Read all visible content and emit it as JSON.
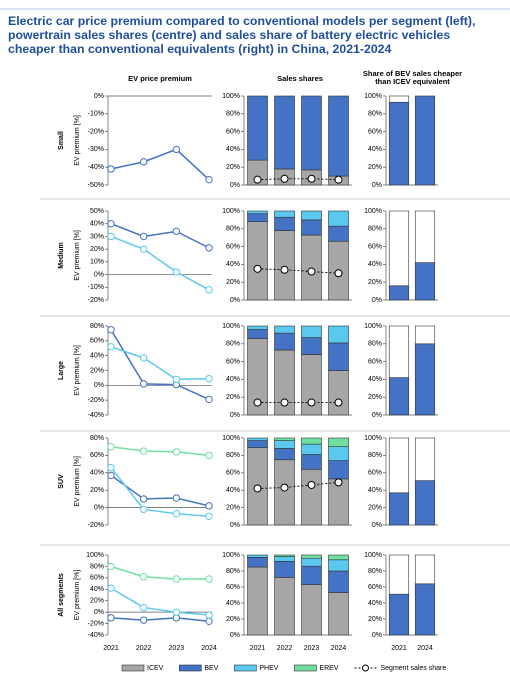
{
  "title": "Electric car price premium compared to conventional models per segment (left), powertrain sales shares (centre) and sales share of battery electric vehicles cheaper than conventional equivalents (right) in China, 2021-2024",
  "column_titles": [
    "EV price premium",
    "Sales shares",
    "Share of BEV sales cheaper than ICEV equivalent"
  ],
  "legend": [
    {
      "name": "ICEV",
      "color": "#a6a6a6",
      "mark": "box"
    },
    {
      "name": "BEV",
      "color": "#4472c4",
      "mark": "box"
    },
    {
      "name": "PHEV",
      "color": "#5bc8ef",
      "mark": "box"
    },
    {
      "name": "EREV",
      "color": "#70e0a0",
      "mark": "box"
    },
    {
      "name": "Segment sales share",
      "color": "#000000",
      "mark": "line"
    }
  ],
  "chart_data": [
    {
      "type": "line",
      "row_label": "Small",
      "y_label": "EV premium [%]",
      "categories": [
        null,
        null,
        null,
        null
      ],
      "ylim": [
        -50,
        0
      ],
      "yticks": [
        {
          "value": 0,
          "label": "0%"
        },
        {
          "value": -10,
          "label": "-10%"
        },
        {
          "value": -20,
          "label": "-20%"
        },
        {
          "value": -30,
          "label": "-30%"
        },
        {
          "value": -40,
          "label": "-40%"
        },
        {
          "value": -50,
          "label": "-50%"
        }
      ],
      "series": [
        {
          "color": "#4472c4",
          "values": [
            -41,
            -37,
            -30,
            -47
          ]
        }
      ]
    },
    {
      "type": "bar",
      "stacked": true,
      "categories": [
        null,
        null,
        null,
        null
      ],
      "ylim": [
        0,
        100
      ],
      "yticks": [
        {
          "value": 0,
          "label": "0%"
        },
        {
          "value": 20,
          "label": "20%"
        },
        {
          "value": 40,
          "label": "40%"
        },
        {
          "value": 60,
          "label": "60%"
        },
        {
          "value": 80,
          "label": "80%"
        },
        {
          "value": 100,
          "label": "100%"
        }
      ],
      "series": [
        {
          "color": "#a6a6a6",
          "values": [
            28,
            18,
            17,
            10
          ]
        },
        {
          "color": "#4472c4",
          "values": [
            72,
            82,
            83,
            90
          ]
        },
        {
          "type": "line",
          "color": "#000000",
          "values": [
            6,
            7,
            7,
            6
          ]
        }
      ]
    },
    {
      "type": "bar",
      "stacked": true,
      "categories": [
        null,
        null
      ],
      "ylim": [
        0,
        100
      ],
      "yticks": [
        {
          "value": 0,
          "label": "0%"
        },
        {
          "value": 20,
          "label": "20%"
        },
        {
          "value": 40,
          "label": "40%"
        },
        {
          "value": 60,
          "label": "60%"
        },
        {
          "value": 80,
          "label": "80%"
        },
        {
          "value": 100,
          "label": "100%"
        }
      ],
      "series": [
        {
          "color": "#4472c4",
          "values": [
            93,
            100
          ]
        },
        {
          "color": "#ffffff",
          "values": [
            7,
            0
          ]
        }
      ]
    },
    {
      "type": "line",
      "row_label": "Medium",
      "y_label": "EV premium [%]",
      "categories": [
        null,
        null,
        null,
        null
      ],
      "ylim": [
        -20,
        50
      ],
      "yticks": [
        {
          "value": 50,
          "label": "50%"
        },
        {
          "value": 40,
          "label": "40%"
        },
        {
          "value": 30,
          "label": "30%"
        },
        {
          "value": 20,
          "label": "20%"
        },
        {
          "value": 10,
          "label": "10%"
        },
        {
          "value": 0,
          "label": "0%"
        },
        {
          "value": -10,
          "label": "-10%"
        },
        {
          "value": -20,
          "label": "-20%"
        }
      ],
      "series": [
        {
          "color": "#4472c4",
          "values": [
            40,
            30,
            34,
            21
          ]
        },
        {
          "color": "#5bc8ef",
          "values": [
            30,
            20,
            2,
            -12
          ]
        }
      ]
    },
    {
      "type": "bar",
      "stacked": true,
      "categories": [
        null,
        null,
        null,
        null
      ],
      "ylim": [
        0,
        100
      ],
      "yticks": [
        {
          "value": 0,
          "label": "0%"
        },
        {
          "value": 20,
          "label": "20%"
        },
        {
          "value": 40,
          "label": "40%"
        },
        {
          "value": 60,
          "label": "60%"
        },
        {
          "value": 80,
          "label": "80%"
        },
        {
          "value": 100,
          "label": "100%"
        }
      ],
      "series": [
        {
          "color": "#a6a6a6",
          "values": [
            88,
            78,
            73,
            66
          ]
        },
        {
          "color": "#4472c4",
          "values": [
            9,
            15,
            17,
            17
          ]
        },
        {
          "color": "#5bc8ef",
          "values": [
            3,
            7,
            10,
            17
          ]
        },
        {
          "type": "line",
          "color": "#000000",
          "values": [
            35,
            34,
            32,
            30
          ]
        }
      ]
    },
    {
      "type": "bar",
      "stacked": true,
      "categories": [
        null,
        null
      ],
      "ylim": [
        0,
        100
      ],
      "yticks": [
        {
          "value": 0,
          "label": "0%"
        },
        {
          "value": 20,
          "label": "20%"
        },
        {
          "value": 40,
          "label": "40%"
        },
        {
          "value": 60,
          "label": "60%"
        },
        {
          "value": 80,
          "label": "80%"
        },
        {
          "value": 100,
          "label": "100%"
        }
      ],
      "series": [
        {
          "color": "#4472c4",
          "values": [
            16,
            42
          ]
        },
        {
          "color": "#ffffff",
          "values": [
            84,
            58
          ]
        }
      ]
    },
    {
      "type": "line",
      "row_label": "Large",
      "y_label": "EV premium [%]",
      "categories": [
        null,
        null,
        null,
        null
      ],
      "ylim": [
        -40,
        80
      ],
      "yticks": [
        {
          "value": 80,
          "label": "80%"
        },
        {
          "value": 60,
          "label": "60%"
        },
        {
          "value": 40,
          "label": "40%"
        },
        {
          "value": 20,
          "label": "20%"
        },
        {
          "value": 0,
          "label": "0%"
        },
        {
          "value": -20,
          "label": "-20%"
        },
        {
          "value": -40,
          "label": "-40%"
        }
      ],
      "series": [
        {
          "color": "#4472c4",
          "values": [
            75,
            2,
            1,
            -19
          ]
        },
        {
          "color": "#5bc8ef",
          "values": [
            52,
            37,
            8,
            9
          ]
        }
      ]
    },
    {
      "type": "bar",
      "stacked": true,
      "categories": [
        null,
        null,
        null,
        null
      ],
      "ylim": [
        0,
        100
      ],
      "yticks": [
        {
          "value": 0,
          "label": "0%"
        },
        {
          "value": 20,
          "label": "20%"
        },
        {
          "value": 40,
          "label": "40%"
        },
        {
          "value": 60,
          "label": "60%"
        },
        {
          "value": 80,
          "label": "80%"
        },
        {
          "value": 100,
          "label": "100%"
        }
      ],
      "series": [
        {
          "color": "#a6a6a6",
          "values": [
            86,
            73,
            68,
            50
          ]
        },
        {
          "color": "#4472c4",
          "values": [
            10,
            19,
            19,
            31
          ]
        },
        {
          "color": "#5bc8ef",
          "values": [
            4,
            8,
            13,
            19
          ]
        },
        {
          "type": "line",
          "color": "#000000",
          "values": [
            14,
            14,
            14,
            14
          ]
        }
      ]
    },
    {
      "type": "bar",
      "stacked": true,
      "categories": [
        null,
        null
      ],
      "ylim": [
        0,
        100
      ],
      "yticks": [
        {
          "value": 0,
          "label": "0%"
        },
        {
          "value": 20,
          "label": "20%"
        },
        {
          "value": 40,
          "label": "40%"
        },
        {
          "value": 60,
          "label": "60%"
        },
        {
          "value": 80,
          "label": "80%"
        },
        {
          "value": 100,
          "label": "100%"
        }
      ],
      "series": [
        {
          "color": "#4472c4",
          "values": [
            42,
            80
          ]
        },
        {
          "color": "#ffffff",
          "values": [
            58,
            20
          ]
        }
      ]
    },
    {
      "type": "line",
      "row_label": "SUV",
      "y_label": "EV premium [%]",
      "categories": [
        null,
        null,
        null,
        null
      ],
      "ylim": [
        -20,
        80
      ],
      "yticks": [
        {
          "value": 80,
          "label": "80%"
        },
        {
          "value": 60,
          "label": "60%"
        },
        {
          "value": 40,
          "label": "40%"
        },
        {
          "value": 20,
          "label": "20%"
        },
        {
          "value": 0,
          "label": "0%"
        },
        {
          "value": -20,
          "label": "-20%"
        }
      ],
      "series": [
        {
          "color": "#4472c4",
          "values": [
            37,
            10,
            11,
            2
          ]
        },
        {
          "color": "#5bc8ef",
          "values": [
            46,
            -2,
            -7,
            -10
          ]
        },
        {
          "color": "#70e0a0",
          "values": [
            70,
            65,
            64,
            60
          ]
        }
      ]
    },
    {
      "type": "bar",
      "stacked": true,
      "categories": [
        null,
        null,
        null,
        null
      ],
      "ylim": [
        0,
        100
      ],
      "yticks": [
        {
          "value": 0,
          "label": "0%"
        },
        {
          "value": 20,
          "label": "20%"
        },
        {
          "value": 40,
          "label": "40%"
        },
        {
          "value": 60,
          "label": "60%"
        },
        {
          "value": 80,
          "label": "80%"
        },
        {
          "value": 100,
          "label": "100%"
        }
      ],
      "series": [
        {
          "color": "#a6a6a6",
          "values": [
            89,
            75,
            64,
            53
          ]
        },
        {
          "color": "#4472c4",
          "values": [
            8,
            13,
            17,
            21
          ]
        },
        {
          "color": "#5bc8ef",
          "values": [
            3,
            9,
            12,
            16
          ]
        },
        {
          "color": "#70e0a0",
          "values": [
            0,
            3,
            7,
            10
          ]
        },
        {
          "type": "line",
          "color": "#000000",
          "values": [
            42,
            43,
            46,
            49
          ]
        }
      ]
    },
    {
      "type": "bar",
      "stacked": true,
      "categories": [
        null,
        null
      ],
      "ylim": [
        0,
        100
      ],
      "yticks": [
        {
          "value": 0,
          "label": "0%"
        },
        {
          "value": 20,
          "label": "20%"
        },
        {
          "value": 40,
          "label": "40%"
        },
        {
          "value": 60,
          "label": "60%"
        },
        {
          "value": 80,
          "label": "80%"
        },
        {
          "value": 100,
          "label": "100%"
        }
      ],
      "series": [
        {
          "color": "#4472c4",
          "values": [
            37,
            51
          ]
        },
        {
          "color": "#ffffff",
          "values": [
            63,
            49
          ]
        }
      ]
    },
    {
      "type": "line",
      "row_label": "All segments",
      "y_label": "EV premium [%]",
      "categories": [
        "2021",
        "2022",
        "2023",
        "2024"
      ],
      "ylim": [
        -40,
        100
      ],
      "yticks": [
        {
          "value": 100,
          "label": "100%"
        },
        {
          "value": 80,
          "label": "80%"
        },
        {
          "value": 60,
          "label": "60%"
        },
        {
          "value": 40,
          "label": "40%"
        },
        {
          "value": 20,
          "label": "20%"
        },
        {
          "value": 0,
          "label": "0%"
        },
        {
          "value": -20,
          "label": "-20%"
        },
        {
          "value": -40,
          "label": "-40%"
        }
      ],
      "series": [
        {
          "color": "#4472c4",
          "values": [
            -10,
            -14,
            -10,
            -16
          ]
        },
        {
          "color": "#5bc8ef",
          "values": [
            42,
            8,
            0,
            -5
          ]
        },
        {
          "color": "#70e0a0",
          "values": [
            80,
            62,
            58,
            58
          ]
        }
      ]
    },
    {
      "type": "bar",
      "stacked": true,
      "categories": [
        "2021",
        "2022",
        "2023",
        "2024"
      ],
      "ylim": [
        0,
        100
      ],
      "yticks": [
        {
          "value": 0,
          "label": "0%"
        },
        {
          "value": 20,
          "label": "20%"
        },
        {
          "value": 40,
          "label": "40%"
        },
        {
          "value": 60,
          "label": "60%"
        },
        {
          "value": 80,
          "label": "80%"
        },
        {
          "value": 100,
          "label": "100%"
        }
      ],
      "series": [
        {
          "color": "#a6a6a6",
          "values": [
            85,
            72,
            63,
            53
          ]
        },
        {
          "color": "#4472c4",
          "values": [
            12,
            20,
            23,
            27
          ]
        },
        {
          "color": "#5bc8ef",
          "values": [
            3,
            6,
            10,
            14
          ]
        },
        {
          "color": "#70e0a0",
          "values": [
            0,
            2,
            4,
            6
          ]
        }
      ]
    },
    {
      "type": "bar",
      "stacked": true,
      "categories": [
        "2021",
        "2024"
      ],
      "ylim": [
        0,
        100
      ],
      "yticks": [
        {
          "value": 0,
          "label": "0%"
        },
        {
          "value": 20,
          "label": "20%"
        },
        {
          "value": 40,
          "label": "40%"
        },
        {
          "value": 60,
          "label": "60%"
        },
        {
          "value": 80,
          "label": "80%"
        },
        {
          "value": 100,
          "label": "100%"
        }
      ],
      "series": [
        {
          "color": "#4472c4",
          "values": [
            51,
            64
          ]
        },
        {
          "color": "#ffffff",
          "values": [
            49,
            36
          ]
        }
      ]
    }
  ]
}
